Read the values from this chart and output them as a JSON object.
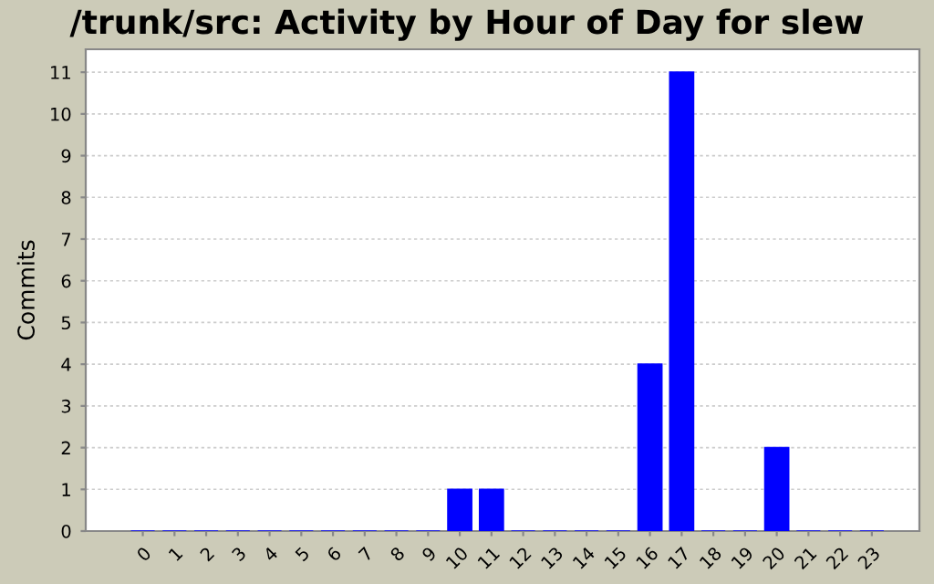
{
  "chart_data": {
    "type": "bar",
    "title": "/trunk/src: Activity by Hour of Day for slew",
    "ylabel": "Commits",
    "categories": [
      "0",
      "1",
      "2",
      "3",
      "4",
      "5",
      "6",
      "7",
      "8",
      "9",
      "10",
      "11",
      "12",
      "13",
      "14",
      "15",
      "16",
      "17",
      "18",
      "19",
      "20",
      "21",
      "22",
      "23"
    ],
    "values": [
      0,
      0,
      0,
      0,
      0,
      0,
      0,
      0,
      0,
      0,
      1,
      1,
      0,
      0,
      0,
      0,
      4,
      11,
      0,
      0,
      2,
      0,
      0,
      0
    ],
    "color": "#0000ff",
    "ylim": [
      0,
      11.55
    ],
    "yticks": [
      0,
      1,
      2,
      3,
      4,
      5,
      6,
      7,
      8,
      9,
      10,
      11
    ],
    "grid": "y"
  }
}
